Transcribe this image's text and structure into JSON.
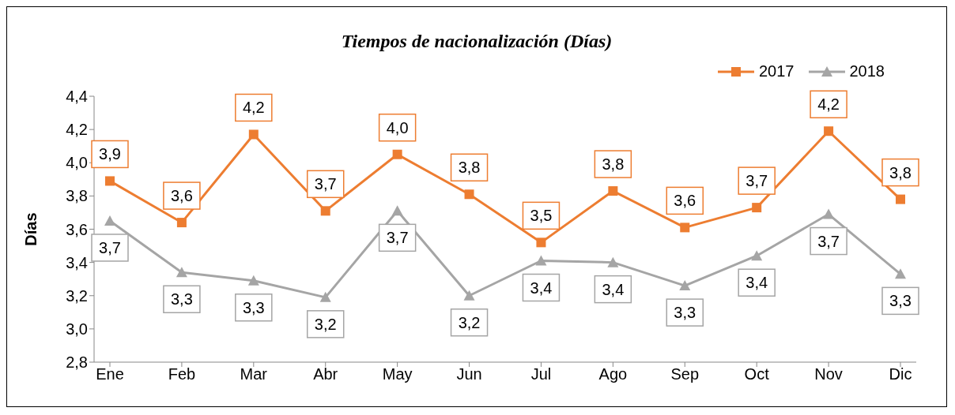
{
  "chart_data": {
    "type": "line",
    "title": "Tiempos de nacionalización (Días)",
    "ylabel": "Días",
    "categories": [
      "Ene",
      "Feb",
      "Mar",
      "Abr",
      "May",
      "Jun",
      "Jul",
      "Ago",
      "Sep",
      "Oct",
      "Nov",
      "Dic"
    ],
    "series": [
      {
        "name": "2017",
        "color": "#ed7d31",
        "marker": "square",
        "values": [
          3.89,
          3.64,
          4.17,
          3.71,
          4.05,
          3.81,
          3.52,
          3.83,
          3.61,
          3.73,
          4.19,
          3.78
        ],
        "value_labels": [
          "3,9",
          "3,6",
          "4,2",
          "3,7",
          "4,0",
          "3,8",
          "3,5",
          "3,8",
          "3,6",
          "3,7",
          "4,2",
          "3,8"
        ]
      },
      {
        "name": "2018",
        "color": "#a5a5a5",
        "marker": "triangle",
        "values": [
          3.65,
          3.34,
          3.29,
          3.19,
          3.71,
          3.2,
          3.41,
          3.4,
          3.26,
          3.44,
          3.69,
          3.33
        ],
        "value_labels": [
          "3,7",
          "3,3",
          "3,3",
          "3,2",
          "3,7",
          "3,2",
          "3,4",
          "3,4",
          "3,3",
          "3,4",
          "3,7",
          "3,3"
        ]
      }
    ],
    "ylim": [
      2.8,
      4.4
    ],
    "yticks": [
      {
        "value": 2.8,
        "label": "2,8"
      },
      {
        "value": 3.0,
        "label": "3,0"
      },
      {
        "value": 3.2,
        "label": "3,2"
      },
      {
        "value": 3.4,
        "label": "3,4"
      },
      {
        "value": 3.6,
        "label": "3,6"
      },
      {
        "value": 3.8,
        "label": "3,8"
      },
      {
        "value": 4.0,
        "label": "4,0"
      },
      {
        "value": 4.2,
        "label": "4,2"
      },
      {
        "value": 4.4,
        "label": "4,4"
      }
    ],
    "grid": false,
    "legend": "top right",
    "line_style": "solid"
  }
}
